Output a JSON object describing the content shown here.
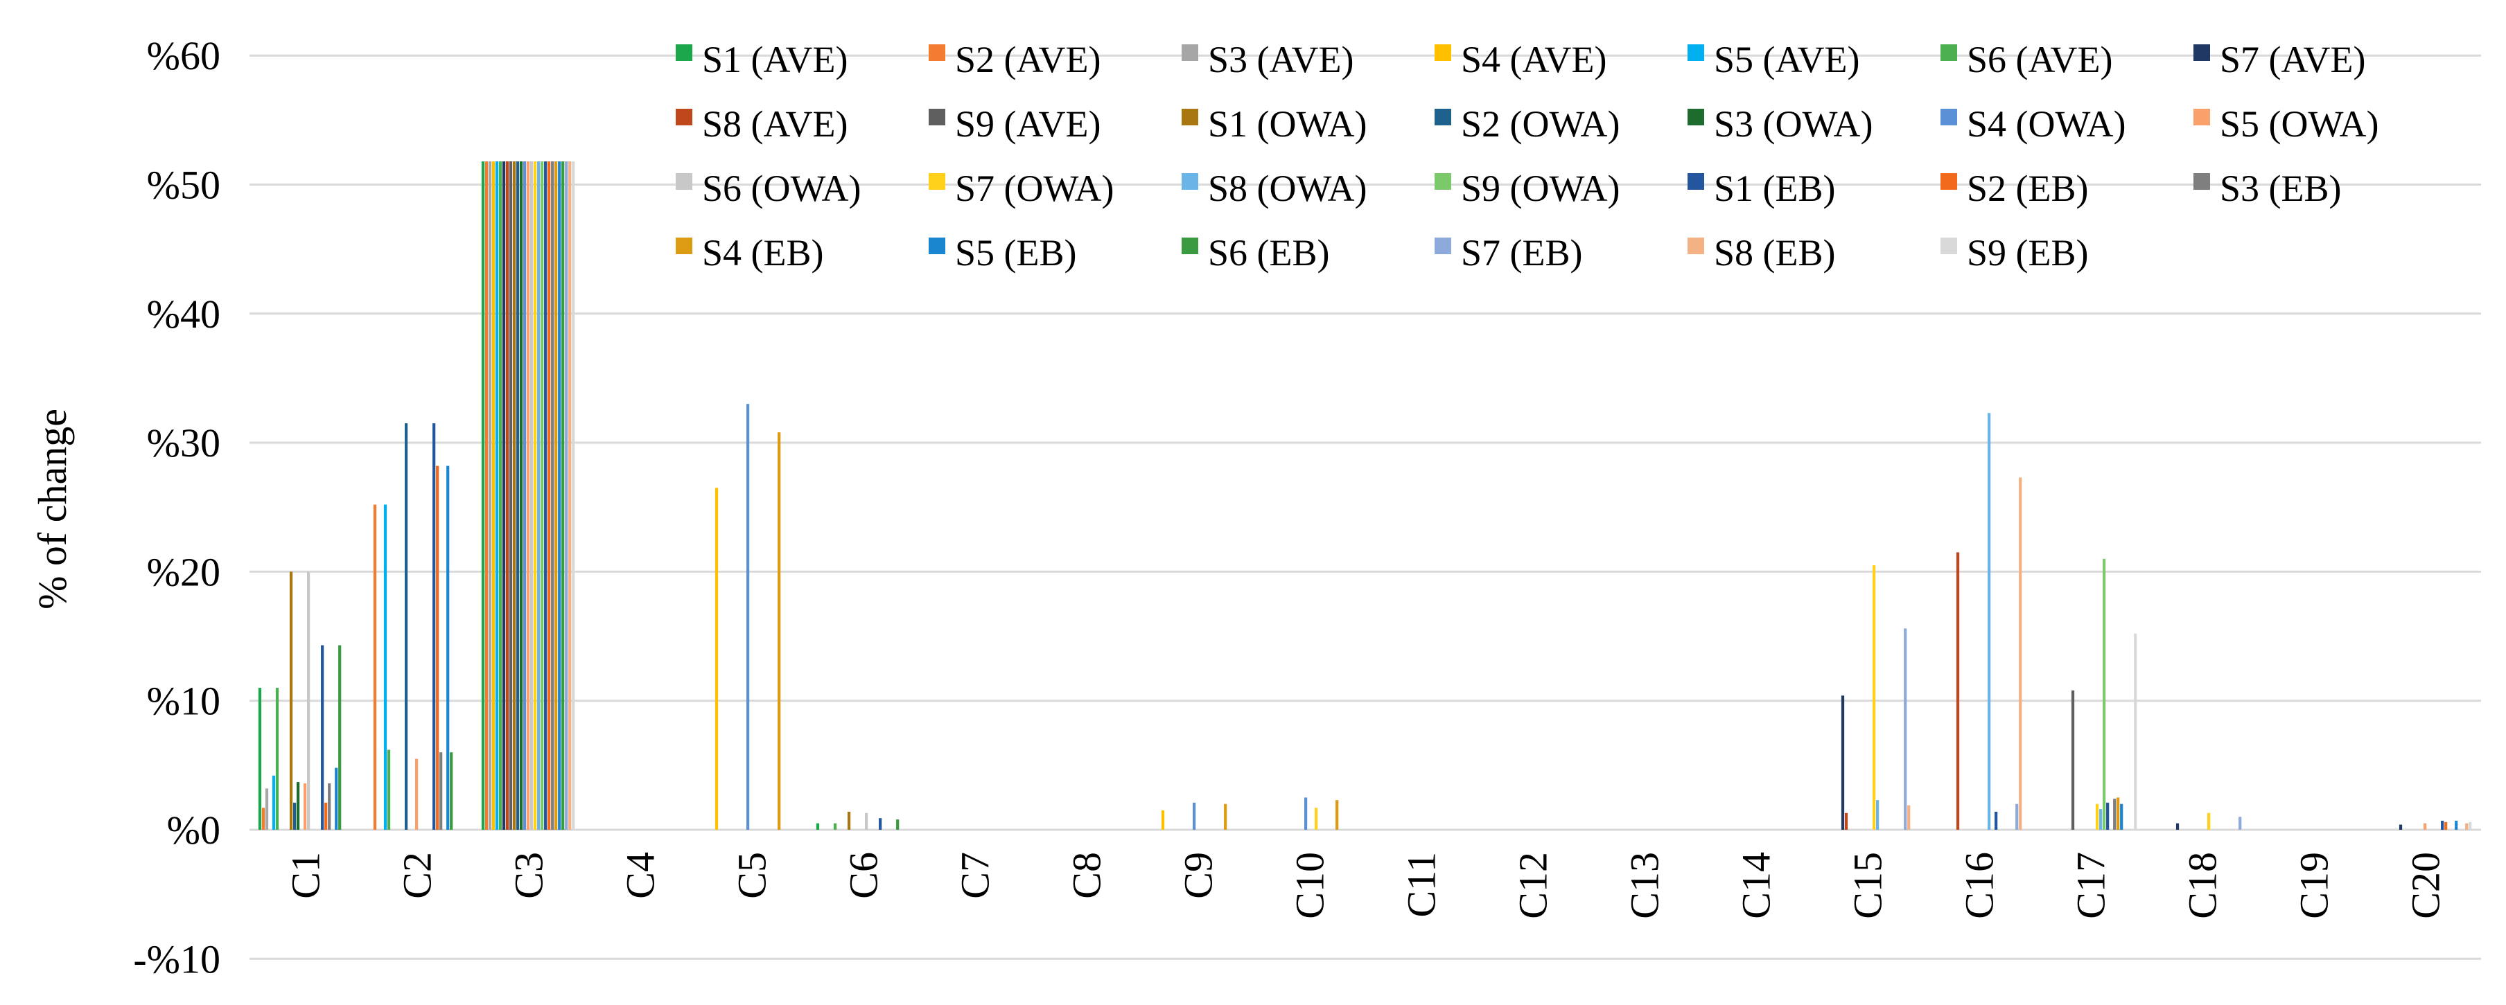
{
  "chart_data": {
    "type": "bar",
    "ylabel": "% of change",
    "ylim": [
      -10,
      60
    ],
    "yticks": [
      -10,
      0,
      10,
      20,
      30,
      40,
      50,
      60
    ],
    "ytick_labels": [
      "-%10",
      "%0",
      "%10",
      "%20",
      "%30",
      "%40",
      "%50",
      "%60"
    ],
    "grid": true,
    "legend_position": "top-right",
    "categories": [
      "C1",
      "C2",
      "C3",
      "C4",
      "C5",
      "C6",
      "C7",
      "C8",
      "C9",
      "C10",
      "C11",
      "C12",
      "C13",
      "C14",
      "C15",
      "C16",
      "C17",
      "C18",
      "C19",
      "C20"
    ],
    "series": [
      {
        "name": "S1 (AVE)",
        "color": "#1aa84b",
        "values": [
          11,
          0,
          51.8,
          0,
          0,
          0.5,
          0,
          0,
          0,
          0,
          0,
          0,
          0,
          0,
          0,
          0,
          0,
          0,
          0,
          0
        ]
      },
      {
        "name": "S2 (AVE)",
        "color": "#f47c30",
        "values": [
          1.7,
          25.2,
          51.8,
          0,
          0,
          0,
          0,
          0,
          0,
          0,
          0,
          0,
          0,
          0,
          0,
          0,
          0,
          0,
          0,
          0
        ]
      },
      {
        "name": "S3 (AVE)",
        "color": "#a6a6a6",
        "values": [
          3.2,
          0,
          51.8,
          0,
          0,
          0,
          0,
          0,
          0,
          0,
          0,
          0,
          0,
          0,
          0,
          0,
          0,
          0,
          0,
          0
        ]
      },
      {
        "name": "S4 (AVE)",
        "color": "#ffc000",
        "values": [
          0,
          0,
          51.8,
          0,
          26.5,
          0,
          0,
          0,
          1.5,
          0,
          0,
          0,
          0,
          0,
          0,
          0,
          0,
          0,
          0,
          0
        ]
      },
      {
        "name": "S5 (AVE)",
        "color": "#00b0f0",
        "values": [
          4.2,
          25.2,
          51.8,
          0,
          0,
          0,
          0,
          0,
          0,
          0,
          0,
          0,
          0,
          0,
          0,
          0,
          0,
          0,
          0,
          0
        ]
      },
      {
        "name": "S6 (AVE)",
        "color": "#4caf50",
        "values": [
          11,
          6.2,
          51.8,
          0,
          0,
          0.5,
          0,
          0,
          0,
          0,
          0,
          0,
          0,
          0,
          0,
          0,
          0,
          0,
          0,
          0
        ]
      },
      {
        "name": "S7 (AVE)",
        "color": "#1f3864",
        "values": [
          0,
          0,
          51.8,
          0,
          0,
          0,
          0,
          0,
          0,
          0,
          0,
          0,
          0,
          0,
          10.4,
          0,
          0,
          0.5,
          0,
          0.4
        ]
      },
      {
        "name": "S8 (AVE)",
        "color": "#c0461b",
        "values": [
          0,
          0,
          51.8,
          0,
          0,
          0,
          0,
          0,
          0,
          0,
          0,
          0,
          0,
          0,
          1.3,
          21.5,
          0,
          0,
          0,
          0
        ]
      },
      {
        "name": "S9 (AVE)",
        "color": "#5f5f5f",
        "values": [
          0,
          0,
          51.8,
          0,
          0,
          0,
          0,
          0,
          0,
          0,
          0,
          0,
          0,
          0,
          0,
          0,
          10.8,
          0,
          0,
          0
        ]
      },
      {
        "name": "S1 (OWA)",
        "color": "#a87711",
        "values": [
          20,
          0,
          51.8,
          0,
          0,
          1.4,
          0,
          0,
          0,
          0,
          0,
          0,
          0,
          0,
          0,
          0,
          0,
          0,
          0,
          0
        ]
      },
      {
        "name": "S2 (OWA)",
        "color": "#1f618d",
        "values": [
          2.1,
          31.5,
          51.8,
          0,
          0,
          0,
          0,
          0,
          0,
          0,
          0,
          0,
          0,
          0,
          0,
          0,
          0,
          0,
          0,
          0
        ]
      },
      {
        "name": "S3 (OWA)",
        "color": "#1e6b2e",
        "values": [
          3.7,
          0,
          51.8,
          0,
          0,
          0,
          0,
          0,
          0,
          0,
          0,
          0,
          0,
          0,
          0,
          0,
          0,
          0,
          0,
          0
        ]
      },
      {
        "name": "S4 (OWA)",
        "color": "#5b8fd6",
        "values": [
          0,
          0,
          51.8,
          0,
          33,
          0,
          0,
          0,
          2.1,
          2.5,
          0,
          0,
          0,
          0,
          0,
          0,
          0,
          0,
          0,
          0
        ]
      },
      {
        "name": "S5 (OWA)",
        "color": "#f9a06b",
        "values": [
          3.6,
          5.5,
          51.8,
          0,
          0,
          0,
          0,
          0,
          0,
          0,
          0,
          0,
          0,
          0,
          0,
          0,
          0,
          0,
          0,
          0.5
        ]
      },
      {
        "name": "S6 (OWA)",
        "color": "#c8c8c8",
        "values": [
          20,
          0,
          51.8,
          0,
          0,
          1.3,
          0,
          0,
          0,
          0,
          0,
          0,
          0,
          0,
          0,
          0,
          0,
          0,
          0,
          0
        ]
      },
      {
        "name": "S7 (OWA)",
        "color": "#ffd11a",
        "values": [
          0,
          0,
          51.8,
          0,
          0,
          0,
          0,
          0,
          0,
          1.7,
          0,
          0,
          0,
          0,
          20.5,
          0,
          2,
          1.3,
          0,
          0
        ]
      },
      {
        "name": "S8 (OWA)",
        "color": "#6ab4e8",
        "values": [
          0,
          0,
          51.8,
          0,
          0,
          0,
          0,
          0,
          0,
          0,
          0,
          0,
          0,
          0,
          2.3,
          32.3,
          1.6,
          0,
          0,
          0
        ]
      },
      {
        "name": "S9 (OWA)",
        "color": "#7cc96b",
        "values": [
          0,
          0,
          51.8,
          0,
          0,
          0,
          0,
          0,
          0,
          0,
          0,
          0,
          0,
          0,
          0,
          0,
          21,
          0,
          0,
          0
        ]
      },
      {
        "name": "S1 (EB)",
        "color": "#23569e",
        "values": [
          14.3,
          31.5,
          51.8,
          0,
          0,
          0.9,
          0,
          0,
          0,
          0,
          0,
          0,
          0,
          0,
          0,
          1.4,
          2.1,
          0,
          0,
          0.7
        ]
      },
      {
        "name": "S2 (EB)",
        "color": "#f26b1d",
        "values": [
          2.1,
          28.2,
          51.8,
          0,
          0,
          0,
          0,
          0,
          0,
          0,
          0,
          0,
          0,
          0,
          0,
          0,
          0,
          0,
          0,
          0.6
        ]
      },
      {
        "name": "S3 (EB)",
        "color": "#7f7f7f",
        "values": [
          3.6,
          6,
          51.8,
          0,
          0,
          0,
          0,
          0,
          0,
          0,
          0,
          0,
          0,
          0,
          0,
          0,
          2.4,
          0,
          0,
          0
        ]
      },
      {
        "name": "S4 (EB)",
        "color": "#dd9a13",
        "values": [
          0,
          0,
          51.8,
          0,
          30.8,
          0,
          0,
          0,
          2,
          2.3,
          0,
          0,
          0,
          0,
          0,
          0,
          2.5,
          0,
          0,
          0
        ]
      },
      {
        "name": "S5 (EB)",
        "color": "#1b86d0",
        "values": [
          4.8,
          28.2,
          51.8,
          0,
          0,
          0,
          0,
          0,
          0,
          0,
          0,
          0,
          0,
          0,
          0,
          0,
          2,
          0,
          0,
          0.7
        ]
      },
      {
        "name": "S6 (EB)",
        "color": "#3a9a3f",
        "values": [
          14.3,
          6,
          51.8,
          0,
          0,
          0.8,
          0,
          0,
          0,
          0,
          0,
          0,
          0,
          0,
          0,
          0,
          0,
          0,
          0,
          0
        ]
      },
      {
        "name": "S7 (EB)",
        "color": "#8eaadb",
        "values": [
          0,
          0,
          51.8,
          0,
          0,
          0,
          0,
          0,
          0,
          0,
          0,
          0,
          0,
          0,
          15.6,
          2,
          0,
          1,
          0,
          0
        ]
      },
      {
        "name": "S8 (EB)",
        "color": "#f4b183",
        "values": [
          0,
          0,
          51.8,
          0,
          0,
          0,
          0,
          0,
          0,
          0,
          0,
          0,
          0,
          0,
          1.9,
          27.3,
          0,
          0,
          0,
          0.5
        ]
      },
      {
        "name": "S9 (EB)",
        "color": "#d9d9d9",
        "values": [
          0,
          0,
          51.8,
          0,
          0,
          0,
          0,
          0,
          0,
          0,
          0,
          0,
          0,
          0,
          0,
          0,
          15.2,
          0,
          0,
          0.6
        ]
      }
    ]
  }
}
